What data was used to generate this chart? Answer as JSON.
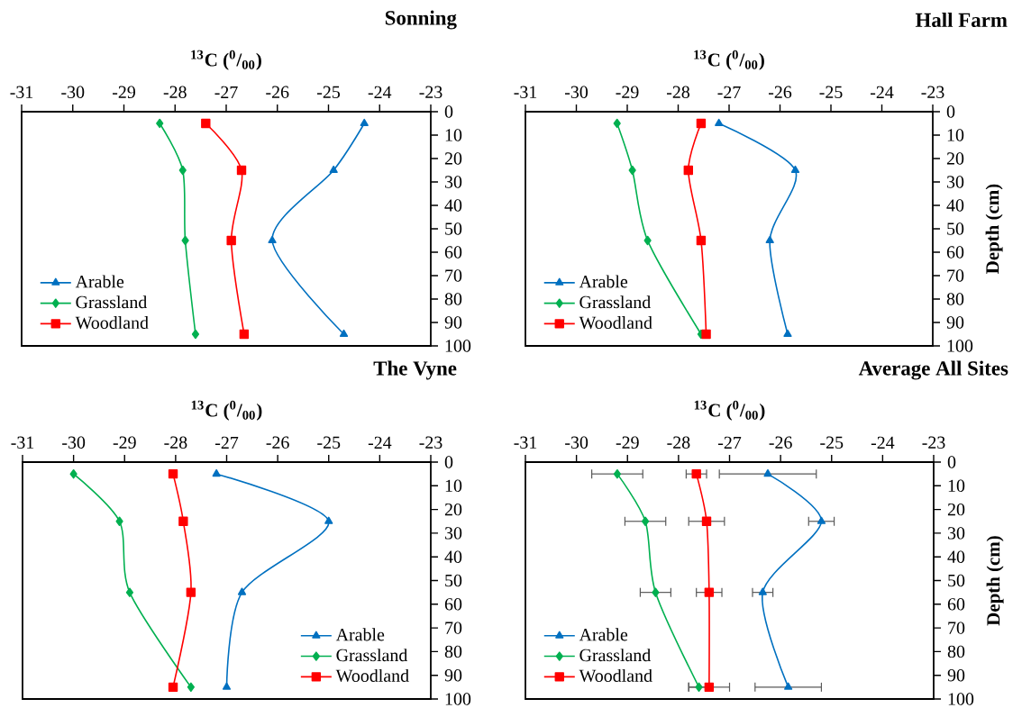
{
  "chart_data": [
    {
      "type": "line",
      "title": "Sonning",
      "xlabel": "$^{13}$C ($^{0}$/$_{00}$)",
      "xlim": [
        -31,
        -23
      ],
      "xticks": [
        -31,
        -30,
        -29,
        -28,
        -27,
        -26,
        -25,
        -24,
        -23
      ],
      "ylim": [
        100,
        0
      ],
      "yticks": [
        0,
        10,
        20,
        30,
        40,
        50,
        60,
        70,
        80,
        90,
        100
      ],
      "legend": "bottom left",
      "series": [
        {
          "name": "Arable",
          "color": "#0070c0",
          "marker": "triangle",
          "x": [
            -24.3,
            -24.9,
            -26.1,
            -24.7
          ],
          "values": [
            5,
            25,
            55,
            95
          ]
        },
        {
          "name": "Grassland",
          "color": "#00b050",
          "marker": "diamond",
          "x": [
            -28.3,
            -27.85,
            -27.8,
            -27.6
          ],
          "values": [
            5,
            25,
            55,
            95
          ]
        },
        {
          "name": "Woodland",
          "color": "#ff0000",
          "marker": "square",
          "x": [
            -27.4,
            -26.7,
            -26.9,
            -26.65
          ],
          "values": [
            5,
            25,
            55,
            95
          ]
        }
      ]
    },
    {
      "type": "line",
      "title": "Hall Farm",
      "xlabel": "$^{13}$C ($^{0}$/$_{00}$)",
      "ylabel": "Depth (cm)",
      "xlim": [
        -31,
        -23
      ],
      "xticks": [
        -31,
        -30,
        -29,
        -28,
        -27,
        -26,
        -25,
        -24,
        -23
      ],
      "ylim": [
        100,
        0
      ],
      "yticks": [
        0,
        10,
        20,
        30,
        40,
        50,
        60,
        70,
        80,
        90,
        100
      ],
      "legend": "bottom left",
      "series": [
        {
          "name": "Arable",
          "color": "#0070c0",
          "marker": "triangle",
          "x": [
            -27.2,
            -25.7,
            -26.2,
            -25.85
          ],
          "values": [
            5,
            25,
            55,
            95
          ]
        },
        {
          "name": "Grassland",
          "color": "#00b050",
          "marker": "diamond",
          "x": [
            -29.2,
            -28.9,
            -28.6,
            -27.55
          ],
          "values": [
            5,
            25,
            55,
            95
          ]
        },
        {
          "name": "Woodland",
          "color": "#ff0000",
          "marker": "square",
          "x": [
            -27.55,
            -27.8,
            -27.55,
            -27.45
          ],
          "values": [
            5,
            25,
            55,
            95
          ]
        }
      ]
    },
    {
      "type": "line",
      "title": "The Vyne",
      "xlabel": "$^{13}$C ($^{0}$/$_{00}$)",
      "xlim": [
        -31,
        -23
      ],
      "xticks": [
        -31,
        -30,
        -29,
        -28,
        -27,
        -26,
        -25,
        -24,
        -23
      ],
      "ylim": [
        100,
        0
      ],
      "yticks": [
        0,
        10,
        20,
        30,
        40,
        50,
        60,
        70,
        80,
        90,
        100
      ],
      "legend": "bottom right",
      "series": [
        {
          "name": "Arable",
          "color": "#0070c0",
          "marker": "triangle",
          "x": [
            -27.2,
            -25.0,
            -26.7,
            -27.0
          ],
          "values": [
            5,
            25,
            55,
            95
          ]
        },
        {
          "name": "Grassland",
          "color": "#00b050",
          "marker": "diamond",
          "x": [
            -30.0,
            -29.1,
            -28.9,
            -27.7
          ],
          "values": [
            5,
            25,
            55,
            95
          ]
        },
        {
          "name": "Woodland",
          "color": "#ff0000",
          "marker": "square",
          "x": [
            -28.05,
            -27.85,
            -27.7,
            -28.05
          ],
          "values": [
            5,
            25,
            55,
            95
          ]
        }
      ]
    },
    {
      "type": "line",
      "title": "Average All Sites",
      "xlabel": "$^{13}$C ($^{0}$/$_{00}$)",
      "ylabel": "Depth (cm)",
      "xlim": [
        -31,
        -23
      ],
      "xticks": [
        -31,
        -30,
        -29,
        -28,
        -27,
        -26,
        -25,
        -24,
        -23
      ],
      "ylim": [
        100,
        0
      ],
      "yticks": [
        0,
        10,
        20,
        30,
        40,
        50,
        60,
        70,
        80,
        90,
        100
      ],
      "legend": "bottom left",
      "series": [
        {
          "name": "Arable",
          "color": "#0070c0",
          "marker": "triangle",
          "x": [
            -26.25,
            -25.2,
            -26.35,
            -25.85
          ],
          "values": [
            5,
            25,
            55,
            95
          ],
          "xerrors": [
            0.95,
            0.25,
            0.2,
            0.65
          ]
        },
        {
          "name": "Grassland",
          "color": "#00b050",
          "marker": "diamond",
          "x": [
            -29.2,
            -28.65,
            -28.45,
            -27.6
          ],
          "values": [
            5,
            25,
            55,
            95
          ],
          "xerrors": [
            0.5,
            0.4,
            0.3,
            0.2
          ]
        },
        {
          "name": "Woodland",
          "color": "#ff0000",
          "marker": "square",
          "x": [
            -27.65,
            -27.45,
            -27.4,
            -27.4
          ],
          "values": [
            5,
            25,
            55,
            95
          ],
          "xerrors": [
            0.2,
            0.35,
            0.25,
            0.4
          ]
        }
      ]
    }
  ]
}
